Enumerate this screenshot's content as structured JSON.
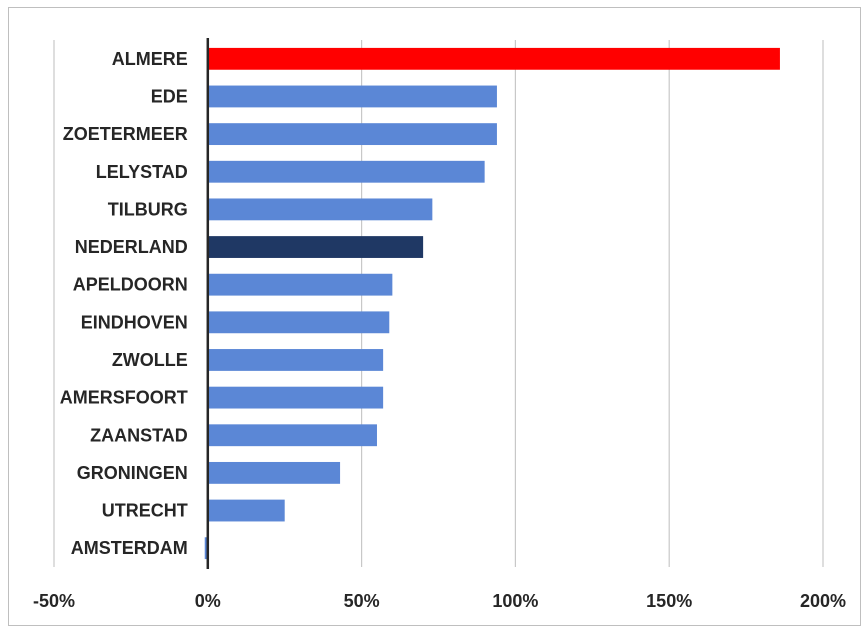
{
  "chart_data": {
    "type": "bar",
    "orientation": "horizontal",
    "title": "",
    "xlabel": "",
    "ylabel": "",
    "categories": [
      "ALMERE",
      "EDE",
      "ZOETERMEER",
      "LELYSTAD",
      "TILBURG",
      "NEDERLAND",
      "APELDOORN",
      "EINDHOVEN",
      "ZWOLLE",
      "AMERSFOORT",
      "ZAANSTAD",
      "GRONINGEN",
      "UTRECHT",
      "AMSTERDAM"
    ],
    "values": [
      186,
      94,
      94,
      90,
      73,
      70,
      60,
      59,
      57,
      57,
      55,
      43,
      25,
      -1
    ],
    "colors": [
      "#ff0000",
      "#5b87d6",
      "#5b87d6",
      "#5b87d6",
      "#5b87d6",
      "#1f3864",
      "#5b87d6",
      "#5b87d6",
      "#5b87d6",
      "#5b87d6",
      "#5b87d6",
      "#5b87d6",
      "#5b87d6",
      "#5b87d6"
    ],
    "xlim": [
      -50,
      200
    ],
    "xticks": [
      -50,
      0,
      50,
      100,
      150,
      200
    ],
    "xtick_labels": [
      "-50%",
      "0%",
      "50%",
      "100%",
      "150%",
      "200%"
    ],
    "grid": "vertical"
  }
}
